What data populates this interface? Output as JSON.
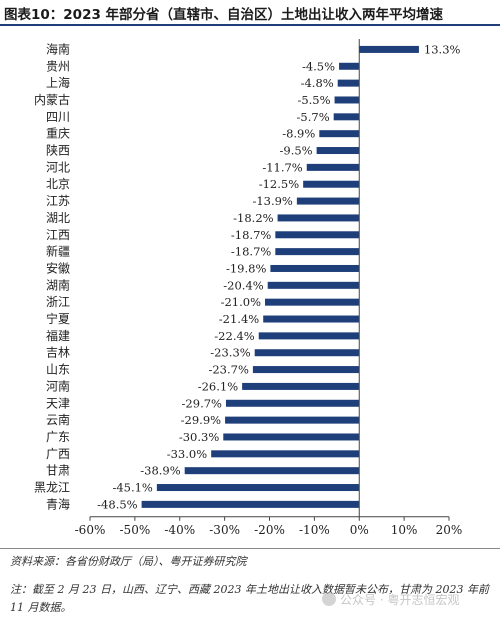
{
  "title": "图表10：2023 年部分省（直辖市、自治区）土地出让收入两年平均增速",
  "source": "资料来源：各省份财政厅（局）、粤开证券研究院",
  "note": "注：截至 2 月 23 日，山西、辽宁、西藏 2023 年土地出让收入数据暂未公布，甘肃为 2023 年前 11 月数据。",
  "watermark": "公众号 · 粤开志恒宏观",
  "colors": {
    "bar": "#1f3f7a",
    "title_rule": "#1f3f7a",
    "axis": "#444444"
  },
  "chart_data": {
    "type": "bar",
    "orientation": "horizontal",
    "categories": [
      "海南",
      "贵州",
      "上海",
      "内蒙古",
      "四川",
      "重庆",
      "陕西",
      "河北",
      "北京",
      "江苏",
      "湖北",
      "江西",
      "新疆",
      "安徽",
      "湖南",
      "浙江",
      "宁夏",
      "福建",
      "吉林",
      "山东",
      "河南",
      "天津",
      "云南",
      "广东",
      "广西",
      "甘肃",
      "黑龙江",
      "青海"
    ],
    "values": [
      13.3,
      -4.5,
      -4.8,
      -5.5,
      -5.7,
      -8.9,
      -9.5,
      -11.7,
      -12.5,
      -13.9,
      -18.2,
      -18.7,
      -18.7,
      -19.8,
      -20.4,
      -21.0,
      -21.4,
      -22.4,
      -23.3,
      -23.7,
      -26.1,
      -29.7,
      -29.9,
      -30.3,
      -33.0,
      -38.9,
      -45.1,
      -48.5
    ],
    "data_labels": [
      "13.3%",
      "-4.5%",
      "-4.8%",
      "-5.5%",
      "-5.7%",
      "-8.9%",
      "-9.5%",
      "-11.7%",
      "-12.5%",
      "-13.9%",
      "-18.2%",
      "-18.7%",
      "-18.7%",
      "-19.8%",
      "-20.4%",
      "-21.0%",
      "-21.4%",
      "-22.4%",
      "-23.3%",
      "-23.7%",
      "-26.1%",
      "-29.7%",
      "-29.9%",
      "-30.3%",
      "-33.0%",
      "-38.9%",
      "-45.1%",
      "-48.5%"
    ],
    "xlim": [
      -60,
      20
    ],
    "xticks": [
      -60,
      -50,
      -40,
      -30,
      -20,
      -10,
      0,
      10,
      20
    ],
    "xtick_labels": [
      "-60%",
      "-50%",
      "-40%",
      "-30%",
      "-20%",
      "-10%",
      "0%",
      "10%",
      "20%"
    ],
    "unit": "%",
    "grid": false,
    "legend": "none"
  }
}
